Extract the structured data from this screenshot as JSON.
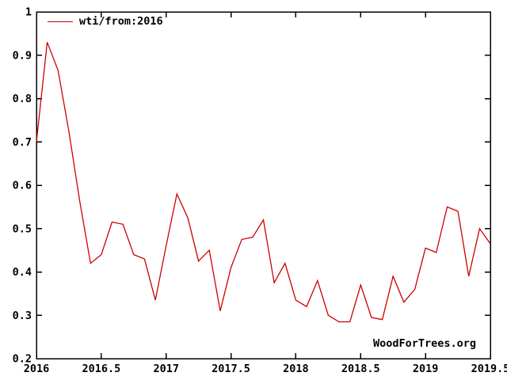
{
  "chart_data": {
    "type": "line",
    "title": "",
    "xlabel": "",
    "ylabel": "",
    "grid": false,
    "background": "#ffffff",
    "border_color": "#000000",
    "xlim": [
      2016,
      2019.5
    ],
    "ylim": [
      0.2,
      1.0
    ],
    "x_tick_labels": [
      "2016",
      "2016.5",
      "2017",
      "2017.5",
      "2018",
      "2018.5",
      "2019",
      "2019.5"
    ],
    "x_ticks": [
      2016,
      2016.5,
      2017,
      2017.5,
      2018,
      2018.5,
      2019,
      2019.5
    ],
    "y_tick_labels": [
      "0.2",
      "0.3",
      "0.4",
      "0.5",
      "0.6",
      "0.7",
      "0.8",
      "0.9",
      "1"
    ],
    "y_ticks": [
      0.2,
      0.3,
      0.4,
      0.5,
      0.6,
      0.7,
      0.8,
      0.9,
      1.0
    ],
    "legend": [
      "wti/from:2016"
    ],
    "legend_position": "top-left",
    "watermark": "WoodForTrees.org",
    "series": [
      {
        "name": "wti/from:2016",
        "color": "#cc0000",
        "x": [
          2016.0,
          2016.083,
          2016.167,
          2016.25,
          2016.333,
          2016.417,
          2016.5,
          2016.583,
          2016.667,
          2016.75,
          2016.833,
          2016.917,
          2017.0,
          2017.083,
          2017.167,
          2017.25,
          2017.333,
          2017.417,
          2017.5,
          2017.583,
          2017.667,
          2017.75,
          2017.833,
          2017.917,
          2018.0,
          2018.083,
          2018.167,
          2018.25,
          2018.333,
          2018.417,
          2018.5,
          2018.583,
          2018.667,
          2018.75,
          2018.833,
          2018.917,
          2019.0,
          2019.083,
          2019.167,
          2019.25,
          2019.333,
          2019.417,
          2019.5
        ],
        "values": [
          0.7,
          0.93,
          0.865,
          0.725,
          0.565,
          0.42,
          0.44,
          0.515,
          0.51,
          0.44,
          0.43,
          0.335,
          0.46,
          0.58,
          0.525,
          0.425,
          0.45,
          0.31,
          0.41,
          0.475,
          0.48,
          0.52,
          0.375,
          0.42,
          0.335,
          0.32,
          0.38,
          0.3,
          0.285,
          0.285,
          0.37,
          0.295,
          0.29,
          0.39,
          0.33,
          0.36,
          0.455,
          0.445,
          0.55,
          0.54,
          0.39,
          0.5,
          0.465
        ]
      }
    ]
  }
}
